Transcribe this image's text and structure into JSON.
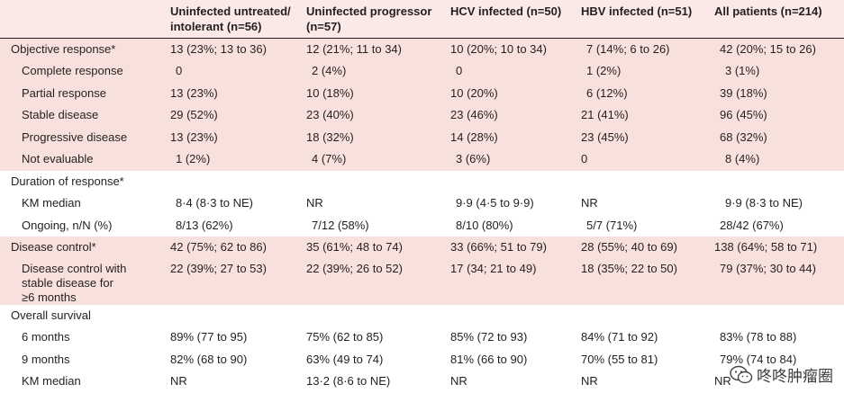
{
  "headers": [
    "",
    "Uninfected untreated/\nintolerant (n=56)",
    "Uninfected progressor\n(n=57)",
    "HCV infected (n=50)",
    "HBV infected (n=51)",
    "All patients (n=214)"
  ],
  "header_lines": [
    [
      "",
      ""
    ],
    [
      "Uninfected untreated/",
      "intolerant (n=56)"
    ],
    [
      "Uninfected progressor",
      "(n=57)"
    ],
    [
      "HCV infected (n=50)",
      ""
    ],
    [
      "HBV infected (n=51)",
      ""
    ],
    [
      "All patients (n=214)",
      ""
    ]
  ],
  "rows": [
    {
      "label": "Objective response*",
      "cells": [
        "13 (23%; 13 to 36)",
        "12 (21%; 11 to 34)",
        "10 (20%; 10 to 34)",
        "7 (14%; 6 to 26)",
        "42 (20%; 15 to 26)"
      ]
    },
    {
      "label": "Complete response",
      "cells": [
        "0",
        "2 (4%)",
        "0",
        "1 (2%)",
        "3 (1%)"
      ]
    },
    {
      "label": "Partial response",
      "cells": [
        "13 (23%)",
        "10 (18%)",
        "10 (20%)",
        "6 (12%)",
        "39 (18%)"
      ]
    },
    {
      "label": "Stable disease",
      "cells": [
        "29 (52%)",
        "23 (40%)",
        "23 (46%)",
        "21 (41%)",
        "96 (45%)"
      ]
    },
    {
      "label": "Progressive disease",
      "cells": [
        "13 (23%)",
        "18 (32%)",
        "14 (28%)",
        "23 (45%)",
        "68 (32%)"
      ]
    },
    {
      "label": "Not evaluable",
      "cells": [
        "1 (2%)",
        "4 (7%)",
        "3 (6%)",
        "0",
        "8 (4%)"
      ]
    },
    {
      "label": "Duration of response*",
      "cells": [
        "",
        "",
        "",
        "",
        ""
      ]
    },
    {
      "label": "KM median",
      "cells": [
        "8·4 (8·3 to NE)",
        "NR",
        "9·9 (4·5 to 9·9)",
        "NR",
        "9·9 (8·3 to NE)"
      ]
    },
    {
      "label": "Ongoing, n/N (%)",
      "cells": [
        "8/13 (62%)",
        "7/12 (58%)",
        "8/10 (80%)",
        "5/7 (71%)",
        "28/42 (67%)"
      ]
    },
    {
      "label": "Disease control*",
      "cells": [
        "42 (75%; 62 to 86)",
        "35 (61%; 48 to 74)",
        "33 (66%; 51 to 79)",
        "28 (55%; 40 to 69)",
        "138 (64%; 58 to 71)"
      ]
    },
    {
      "label_lines": [
        "Disease control with",
        "stable disease for",
        "≥6 months"
      ],
      "cells": [
        "22 (39%; 27 to 53)",
        "22 (39%; 26 to 52)",
        "17 (34; 21 to 49)",
        "18 (35%; 22 to 50)",
        "79 (37%; 30 to 44)"
      ]
    },
    {
      "label": "Overall survival",
      "cells": [
        "",
        "",
        "",
        "",
        ""
      ]
    },
    {
      "label": "6 months",
      "cells": [
        "89% (77 to 95)",
        "75% (62 to 85)",
        "85% (72 to 93)",
        "84% (71 to 92)",
        "83% (78 to 88)"
      ]
    },
    {
      "label": "9 months",
      "cells": [
        "82% (68 to 90)",
        "63% (49 to 74)",
        "81% (66 to 90)",
        "70% (55 to 81)",
        "79% (74 to 84)"
      ]
    },
    {
      "label": "KM median",
      "cells": [
        "NR",
        "13·2 (8·6 to NE)",
        "NR",
        "NR",
        "NR"
      ]
    }
  ],
  "watermark": {
    "text": "咚咚肿瘤圈",
    "icon": "wechat-icon"
  }
}
